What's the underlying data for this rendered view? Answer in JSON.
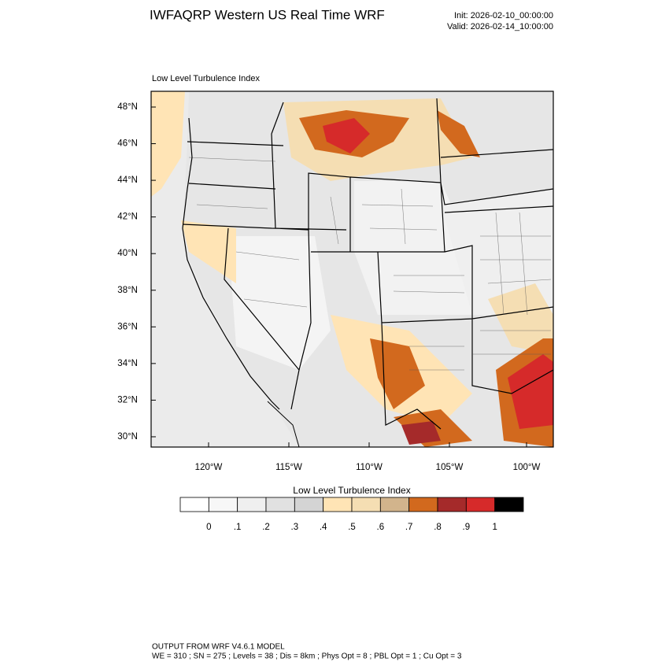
{
  "header": {
    "title": "IWFAQRP Western US Real Time WRF",
    "init": "Init: 2026-02-10_00:00:00",
    "valid": "Valid: 2026-02-14_10:00:00"
  },
  "map": {
    "label": "Low Level Turbulence Index",
    "lat_labels": [
      "48°N",
      "46°N",
      "44°N",
      "42°N",
      "40°N",
      "38°N",
      "36°N",
      "34°N",
      "32°N",
      "30°N"
    ],
    "lon_labels": [
      "120°W",
      "115°W",
      "110°W",
      "105°W",
      "100°W"
    ]
  },
  "colorbar": {
    "title": "Low Level Turbulence Index",
    "colors": [
      "#ffffff",
      "#f7f7f7",
      "#efefef",
      "#e1e1e1",
      "#d4d4d4",
      "#ffe4b5",
      "#f5deb3",
      "#d2b48c",
      "#d2691e",
      "#a52a2a",
      "#d62a2a",
      "#000000"
    ],
    "labels": [
      "0",
      ".1",
      ".2",
      ".3",
      ".4",
      ".5",
      ".6",
      ".7",
      ".8",
      ".9",
      "1"
    ]
  },
  "footer": {
    "line1": "OUTPUT FROM WRF V4.6.1 MODEL",
    "line2": "WE = 310 ; SN = 275 ; Levels = 38 ; Dis = 8km ; Phys Opt = 8 ; PBL Opt = 1 ; Cu Opt = 3"
  }
}
